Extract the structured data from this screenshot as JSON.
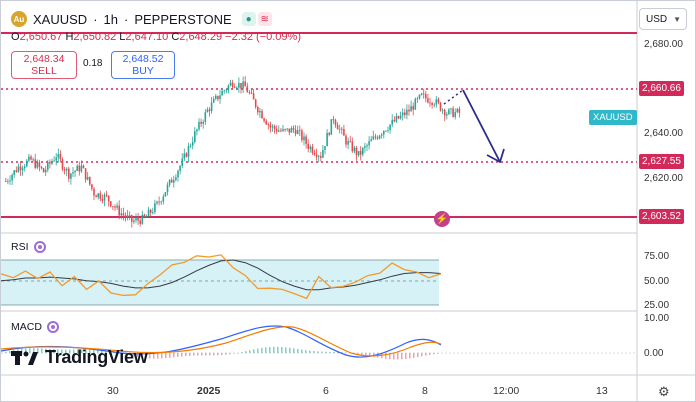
{
  "header": {
    "symbol": "XAUUSD",
    "interval": "1h",
    "broker": "PEPPERSTONE",
    "separator": "·",
    "market_status_icons": [
      "market-open-icon",
      "session-icon"
    ]
  },
  "ohlc": {
    "open_label": "O",
    "open": "2,650.67",
    "high_label": "H",
    "high": "2,650.82",
    "low_label": "L",
    "low": "2,647.10",
    "close_label": "C",
    "close": "2,648.29",
    "change": "−2.32 (−0.09%)"
  },
  "trade": {
    "sell_price": "2,648.34",
    "sell_label": "SELL",
    "spread": "0.18",
    "buy_price": "2,648.52",
    "buy_label": "BUY"
  },
  "currency_selector": {
    "value": "USD"
  },
  "price_axis": {
    "ticks": [
      "2,680.00",
      "2,640.00",
      "2,620.00",
      "75.00",
      "50.00",
      "25.00",
      "10.00",
      "0.00"
    ]
  },
  "price_labels": {
    "line_high": "2,660.66",
    "line_mid": "2,627.55",
    "line_low": "2,603.52",
    "symbol_tag": "XAUUSD"
  },
  "colors": {
    "bull": "#26a69a",
    "bear": "#e5484d",
    "resistance_line": "#d2295a",
    "arrow": "#2c2c8c",
    "rsi": "#f39a2b",
    "rsi_ma": "#363a45",
    "rsi_band": "#d6f2f6",
    "macd": "#2962ff",
    "signal": "#f57c00"
  },
  "indicators": {
    "rsi": {
      "label": "RSI"
    },
    "macd": {
      "label": "MACD"
    }
  },
  "x_axis": {
    "ticks": [
      "30",
      "2025",
      "6",
      "8",
      "12:00",
      "13"
    ]
  },
  "brand": {
    "name": "TradingView"
  },
  "chart_data": {
    "type": "candlestick",
    "y_range": [
      2600,
      2690
    ],
    "horizontal_levels": [
      2686.5,
      2660.66,
      2627.55,
      2603.52
    ],
    "close_path": [
      [
        0,
        2622
      ],
      [
        6,
        2628
      ],
      [
        12,
        2631
      ],
      [
        18,
        2626
      ],
      [
        24,
        2633
      ],
      [
        30,
        2625
      ],
      [
        36,
        2628
      ],
      [
        42,
        2617
      ],
      [
        48,
        2615
      ],
      [
        54,
        2609
      ],
      [
        60,
        2605
      ],
      [
        66,
        2606
      ],
      [
        72,
        2612
      ],
      [
        78,
        2621
      ],
      [
        84,
        2630
      ],
      [
        90,
        2642
      ],
      [
        96,
        2652
      ],
      [
        102,
        2659
      ],
      [
        108,
        2664
      ],
      [
        114,
        2662
      ],
      [
        120,
        2653
      ],
      [
        126,
        2645
      ],
      [
        132,
        2643
      ],
      [
        138,
        2644
      ],
      [
        144,
        2637
      ],
      [
        150,
        2633
      ],
      [
        156,
        2649
      ],
      [
        162,
        2639
      ],
      [
        168,
        2633
      ],
      [
        174,
        2639
      ],
      [
        180,
        2644
      ],
      [
        186,
        2648
      ],
      [
        192,
        2652
      ],
      [
        198,
        2658
      ],
      [
        204,
        2656
      ],
      [
        210,
        2651
      ],
      [
        216,
        2651
      ]
    ],
    "rsi": [
      58,
      57,
      61,
      56,
      60,
      48,
      55,
      44,
      50,
      40,
      34,
      38,
      47,
      60,
      68,
      74,
      78,
      80,
      79,
      68,
      56,
      45,
      42,
      44,
      36,
      34,
      55,
      46,
      44,
      52,
      56,
      62,
      70,
      66,
      60,
      57,
      58
    ],
    "rsi_ma": [
      52,
      53,
      55,
      55,
      56,
      55,
      54,
      52,
      51,
      49,
      46,
      44,
      44,
      46,
      50,
      56,
      63,
      69,
      74,
      75,
      72,
      66,
      58,
      51,
      46,
      42,
      42,
      44,
      45,
      47,
      50,
      53,
      57,
      60,
      61,
      61,
      60
    ]
  }
}
